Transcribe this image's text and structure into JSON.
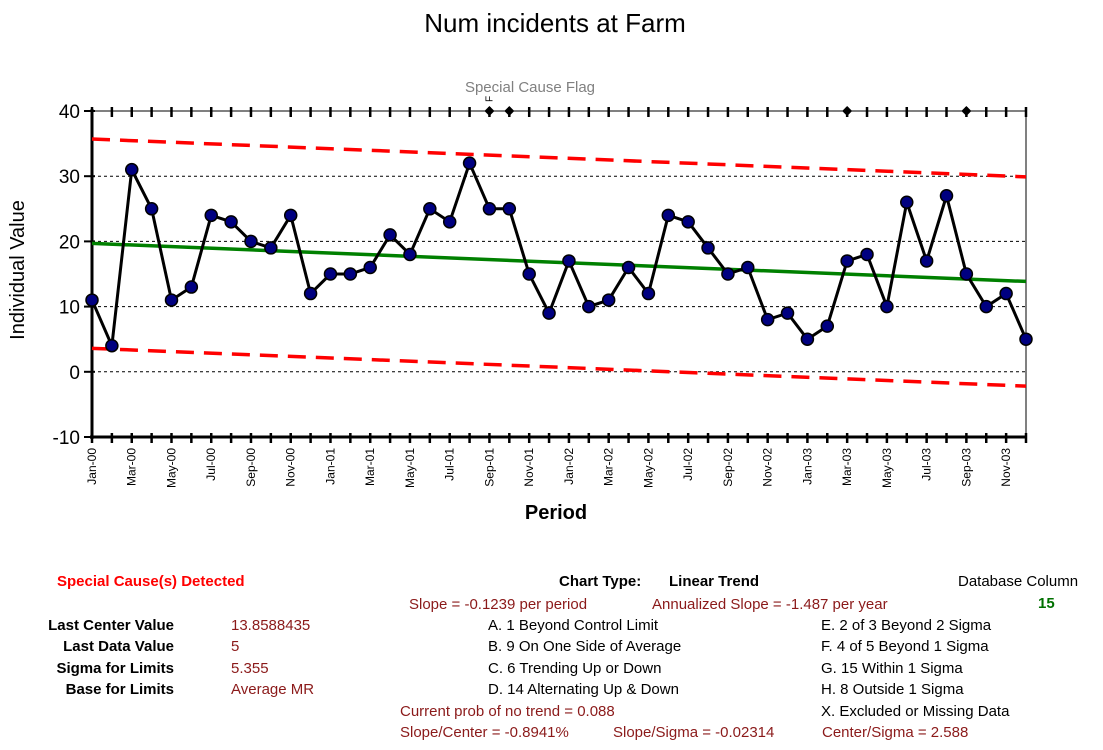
{
  "chart_data": {
    "type": "line",
    "title": "Num incidents at Farm",
    "flag_title": "Special Cause Flag",
    "flag_letter": "F",
    "xlabel": "Period",
    "ylabel": "Individual Value",
    "ylim": [
      -10,
      40
    ],
    "yticks": [
      -10,
      0,
      10,
      20,
      30,
      40
    ],
    "grid": true,
    "categories": [
      "Jan-00",
      "Feb-00",
      "Mar-00",
      "Apr-00",
      "May-00",
      "Jun-00",
      "Jul-00",
      "Aug-00",
      "Sep-00",
      "Oct-00",
      "Nov-00",
      "Dec-00",
      "Jan-01",
      "Feb-01",
      "Mar-01",
      "Apr-01",
      "May-01",
      "Jun-01",
      "Jul-01",
      "Aug-01",
      "Sep-01",
      "Oct-01",
      "Nov-01",
      "Dec-01",
      "Jan-02",
      "Feb-02",
      "Mar-02",
      "Apr-02",
      "May-02",
      "Jun-02",
      "Jul-02",
      "Aug-02",
      "Sep-02",
      "Oct-02",
      "Nov-02",
      "Dec-02",
      "Jan-03",
      "Feb-03",
      "Mar-03",
      "Apr-03",
      "May-03",
      "Jun-03",
      "Jul-03",
      "Aug-03",
      "Sep-03",
      "Oct-03",
      "Nov-03",
      "Dec-03"
    ],
    "tick_labels": [
      "Jan-00",
      "Mar-00",
      "May-00",
      "Jul-00",
      "Sep-00",
      "Nov-00",
      "Jan-01",
      "Mar-01",
      "May-01",
      "Jul-01",
      "Sep-01",
      "Nov-01",
      "Jan-02",
      "Mar-02",
      "May-02",
      "Jul-02",
      "Sep-02",
      "Nov-02",
      "Jan-03",
      "Mar-03",
      "May-03",
      "Jul-03",
      "Sep-03",
      "Nov-03"
    ],
    "series": [
      {
        "values": [
          11,
          4,
          31,
          25,
          11,
          13,
          24,
          23,
          20,
          19,
          24,
          12,
          15,
          15,
          16,
          21,
          18,
          25,
          23,
          32,
          25,
          25,
          15,
          9,
          17,
          10,
          11,
          16,
          12,
          24,
          23,
          19,
          15,
          16,
          8,
          9,
          5,
          7,
          17,
          18,
          10,
          26,
          17,
          27,
          15,
          10,
          12,
          5
        ],
        "color": "#000000",
        "marker_color": "#000080"
      }
    ],
    "center_line": {
      "start": 19.7,
      "end": 13.86,
      "color": "#008000"
    },
    "ucl": {
      "start": 35.7,
      "end": 29.9,
      "color": "#ff0000"
    },
    "lcl": {
      "start": 3.6,
      "end": -2.2,
      "color": "#ff0000"
    },
    "special_cause_flags": [
      "Sep-01",
      "Oct-01",
      "Mar-03",
      "Sep-03"
    ]
  },
  "info": {
    "special_cause": "Special Cause(s) Detected",
    "rows": [
      {
        "label": "Last Center Value",
        "value": "13.8588435"
      },
      {
        "label": "Last Data Value",
        "value": "5"
      },
      {
        "label": "Sigma for Limits",
        "value": "5.355"
      },
      {
        "label": "Base for Limits",
        "value": "Average MR"
      }
    ],
    "chart_type_label": "Chart Type:",
    "chart_type_value": "Linear Trend",
    "slope": "Slope = -0.1239 per period",
    "annualized_slope": "Annualized Slope = -1.487 per year",
    "db_column_label": "Database Column",
    "db_column_value": "15",
    "rules_left": [
      "A.  1 Beyond Control Limit",
      "B.  9 On One Side of Average",
      "C.  6 Trending Up or Down",
      "D.  14 Alternating  Up & Down"
    ],
    "rules_right": [
      "E.  2 of 3 Beyond 2 Sigma",
      "F.  4 of 5 Beyond 1 Sigma",
      "G.  15 Within 1 Sigma",
      "H.  8 Outside 1 Sigma",
      "X.  Excluded or Missing Data"
    ],
    "prob_no_trend": "Current prob of no trend = 0.088",
    "slope_center": "Slope/Center = -0.8941%",
    "slope_sigma": "Slope/Sigma = -0.02314",
    "center_sigma": "Center/Sigma = 2.588"
  }
}
